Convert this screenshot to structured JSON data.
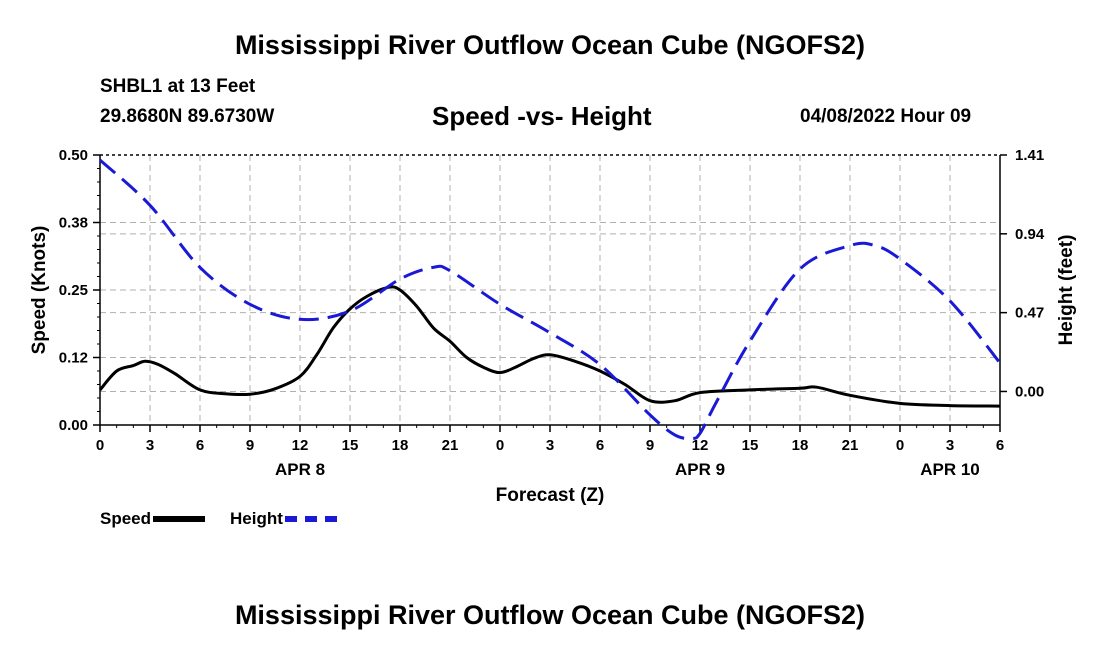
{
  "page": {
    "title_top": "Mississippi River Outflow Ocean Cube (NGOFS2)",
    "title_bottom": "Mississippi River Outflow Ocean Cube (NGOFS2)",
    "station": "SHBL1 at 13 Feet",
    "coords": "29.8680N  89.6730W",
    "subtitle": "Speed -vs- Height",
    "datetime": "04/08/2022 Hour 09"
  },
  "legend": {
    "speed_label": "Speed",
    "height_label": "Height"
  },
  "colors": {
    "speed": "#000000",
    "height": "#1a1ad6",
    "grid": "#b0b0b0"
  },
  "chart_data": {
    "type": "line",
    "title": "Speed -vs- Height",
    "xlabel": "Forecast (Z)",
    "ylabel": "Speed (Knots)",
    "y2label": "Height (feet)",
    "x_unit": "hours from 00Z Apr 8",
    "xlim": [
      0,
      54
    ],
    "ylim": [
      0,
      0.5
    ],
    "y2lim": [
      -0.2,
      1.41
    ],
    "x_ticks": [
      0,
      3,
      6,
      9,
      12,
      15,
      18,
      21,
      24,
      27,
      30,
      33,
      36,
      39,
      42,
      45,
      48,
      51,
      54
    ],
    "x_tick_labels": [
      "0",
      "3",
      "6",
      "9",
      "12",
      "15",
      "18",
      "21",
      "0",
      "3",
      "6",
      "9",
      "12",
      "15",
      "18",
      "21",
      "0",
      "3",
      "6"
    ],
    "date_labels": [
      {
        "x": 12,
        "label": "APR 8"
      },
      {
        "x": 36,
        "label": "APR 9"
      },
      {
        "x": 51,
        "label": "APR 10"
      }
    ],
    "y_ticks": [
      0.0,
      0.125,
      0.25,
      0.375,
      0.5
    ],
    "y_tick_labels": [
      "0.00",
      "0.12",
      "0.25",
      "0.38",
      "0.50"
    ],
    "y2_ticks": [
      0.0,
      0.47,
      0.94,
      1.41
    ],
    "y2_tick_labels": [
      "0.00",
      "0.47",
      "0.94",
      "1.41"
    ],
    "series": [
      {
        "name": "Speed",
        "axis": "left",
        "style": "solid",
        "x": [
          0,
          1,
          2,
          2.7,
          3.5,
          4.5,
          6,
          7.5,
          9,
          10.5,
          12,
          13,
          14,
          15,
          16,
          17.3,
          18,
          19,
          20,
          21,
          22,
          23,
          24,
          25,
          26,
          27,
          28.5,
          30,
          31.5,
          33,
          34.5,
          36,
          39,
          42,
          43,
          45,
          48,
          51,
          54
        ],
        "y": [
          0.065,
          0.1,
          0.11,
          0.118,
          0.112,
          0.095,
          0.065,
          0.058,
          0.057,
          0.067,
          0.09,
          0.13,
          0.18,
          0.215,
          0.238,
          0.255,
          0.25,
          0.22,
          0.18,
          0.155,
          0.125,
          0.107,
          0.097,
          0.108,
          0.123,
          0.13,
          0.118,
          0.1,
          0.075,
          0.045,
          0.045,
          0.06,
          0.065,
          0.068,
          0.07,
          0.055,
          0.04,
          0.036,
          0.035
        ]
      },
      {
        "name": "Height",
        "axis": "right",
        "style": "dashed",
        "x": [
          0,
          3,
          6,
          9,
          12,
          15,
          18,
          20,
          21,
          24,
          27,
          30,
          33,
          34.5,
          35.5,
          36,
          37,
          39,
          42,
          45,
          46.5,
          48,
          51,
          54
        ],
        "y": [
          1.38,
          1.11,
          0.74,
          0.52,
          0.43,
          0.48,
          0.67,
          0.74,
          0.72,
          0.52,
          0.35,
          0.16,
          -0.14,
          -0.26,
          -0.28,
          -0.25,
          -0.06,
          0.3,
          0.73,
          0.87,
          0.87,
          0.79,
          0.54,
          0.17
        ]
      }
    ]
  }
}
